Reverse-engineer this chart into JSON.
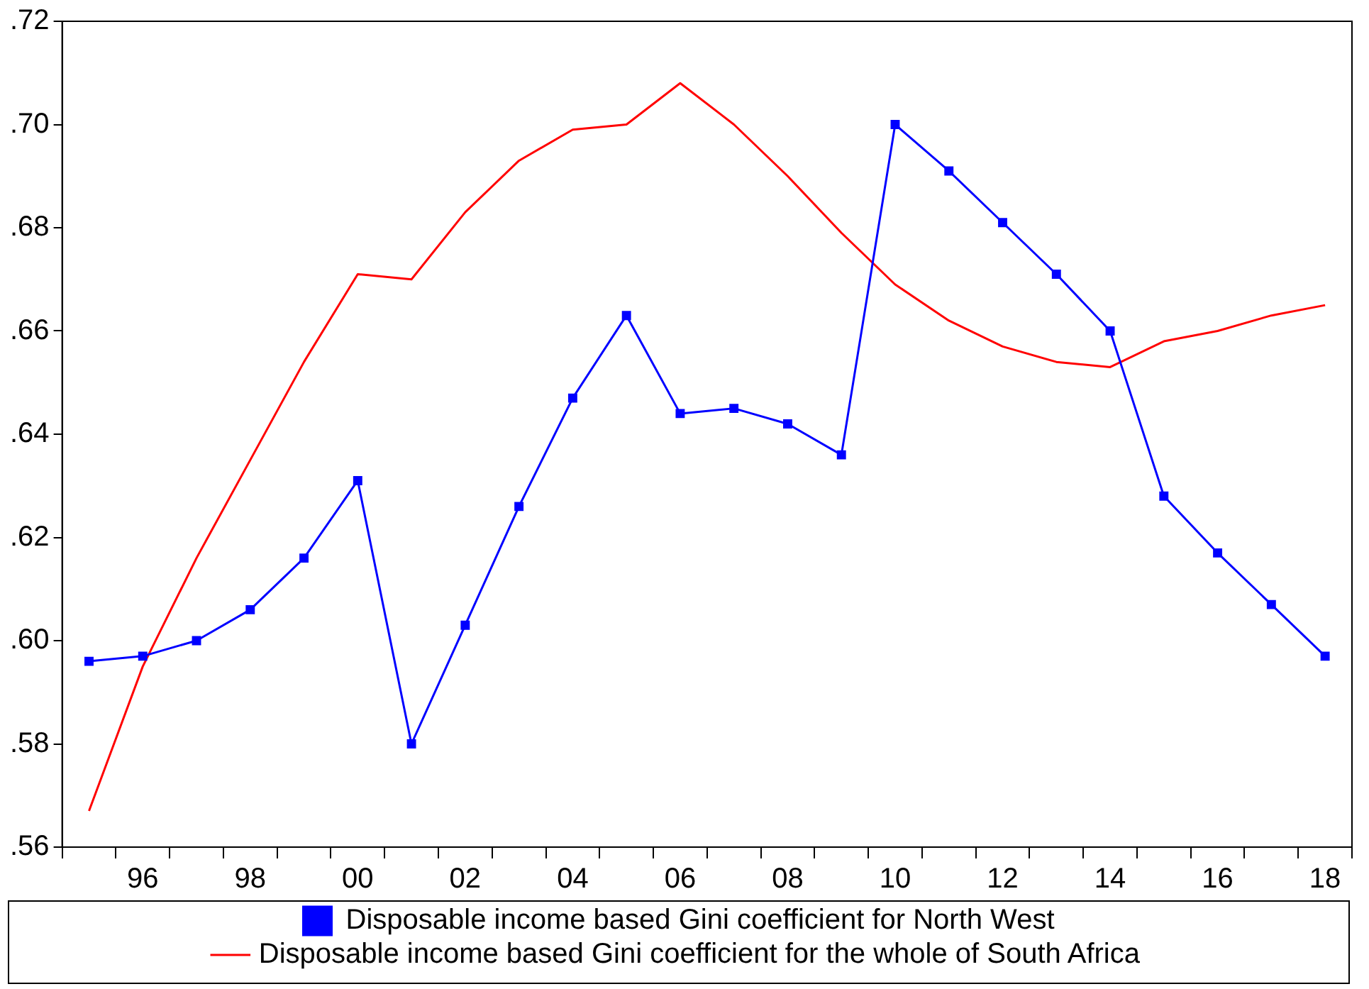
{
  "chart_data": {
    "type": "line",
    "categories": [
      null,
      "96",
      null,
      "98",
      null,
      "00",
      null,
      "02",
      null,
      "04",
      null,
      "06",
      null,
      "08",
      null,
      "10",
      null,
      "12",
      null,
      "14",
      null,
      "16",
      null,
      "18"
    ],
    "series": [
      {
        "name": "Disposable income based Gini coefficient for North West",
        "color": "#0000ff",
        "marker": "square",
        "values": [
          0.596,
          0.597,
          0.6,
          0.606,
          0.616,
          0.631,
          0.58,
          0.603,
          0.626,
          0.647,
          0.663,
          0.644,
          0.645,
          0.642,
          0.636,
          0.7,
          0.691,
          0.681,
          0.671,
          0.66,
          0.628,
          0.617,
          0.607,
          0.597
        ]
      },
      {
        "name": "Disposable income based Gini coefficient for the whole of South Africa",
        "color": "#ff0000",
        "marker": "none",
        "values": [
          0.567,
          0.595,
          0.616,
          0.635,
          0.654,
          0.671,
          0.67,
          0.683,
          0.693,
          0.699,
          0.7,
          0.708,
          0.7,
          0.69,
          0.679,
          0.669,
          0.662,
          0.657,
          0.654,
          0.653,
          0.658,
          0.66,
          0.663,
          0.665
        ]
      }
    ],
    "ylim": [
      0.56,
      0.72
    ],
    "yticks": [
      {
        "value": 0.56,
        "label": ".56"
      },
      {
        "value": 0.58,
        "label": ".58"
      },
      {
        "value": 0.6,
        "label": ".60"
      },
      {
        "value": 0.62,
        "label": ".62"
      },
      {
        "value": 0.64,
        "label": ".64"
      },
      {
        "value": 0.66,
        "label": ".66"
      },
      {
        "value": 0.68,
        "label": ".68"
      },
      {
        "value": 0.7,
        "label": ".70"
      },
      {
        "value": 0.72,
        "label": ".72"
      }
    ],
    "grid": false,
    "legend": "bottom",
    "line_style": "solid"
  }
}
